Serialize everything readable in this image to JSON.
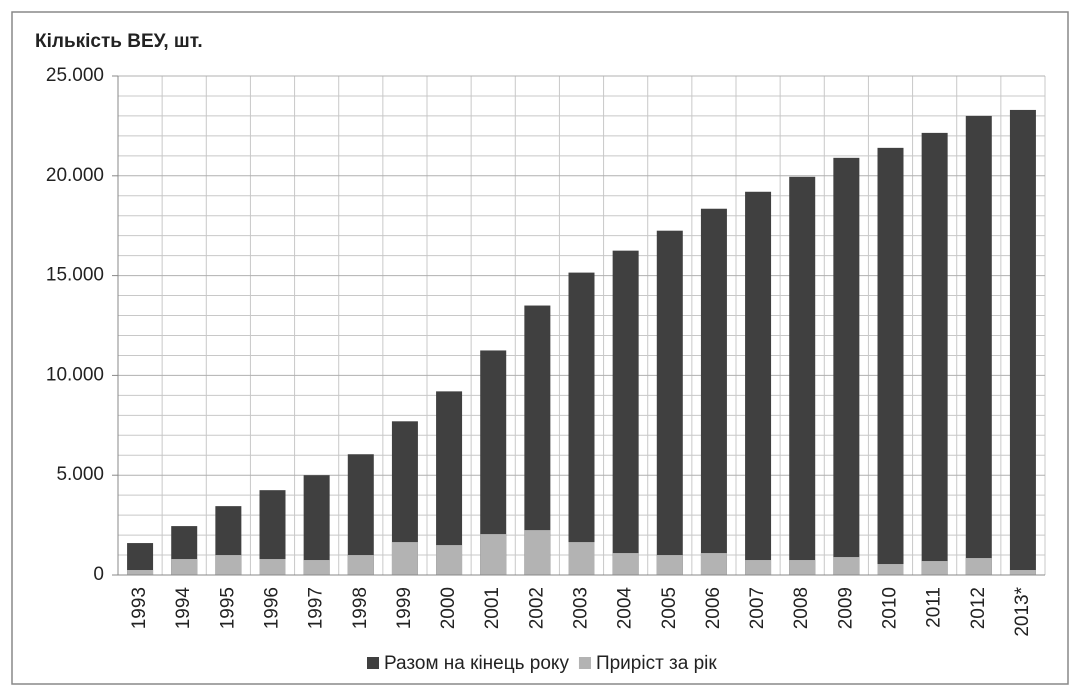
{
  "chart_data": {
    "type": "bar",
    "title": "Кількість ВЕУ, шт.",
    "categories": [
      "1993",
      "1994",
      "1995",
      "1996",
      "1997",
      "1998",
      "1999",
      "2000",
      "2001",
      "2002",
      "2003",
      "2004",
      "2005",
      "2006",
      "2007",
      "2008",
      "2009",
      "2010",
      "2011",
      "2012",
      "2013*"
    ],
    "series": [
      {
        "name": "Разом на кінець року",
        "color": "#404040",
        "values": [
          1600,
          2450,
          3450,
          4250,
          5000,
          6050,
          7700,
          9200,
          11250,
          13500,
          15150,
          16250,
          17250,
          18350,
          19200,
          19950,
          20900,
          21400,
          22150,
          23000,
          23300
        ]
      },
      {
        "name": "Приріст за рік",
        "color": "#b3b3b3",
        "values": [
          250,
          800,
          1000,
          800,
          750,
          1000,
          1650,
          1500,
          2050,
          2250,
          1650,
          1100,
          1000,
          1100,
          750,
          750,
          900,
          550,
          700,
          850,
          250
        ]
      }
    ],
    "ylim": [
      0,
      25000
    ],
    "yticks": [
      0,
      {
        "value": 5000,
        "label": "5.000"
      },
      {
        "value": 10000,
        "label": "10.000"
      },
      {
        "value": 15000,
        "label": "15.000"
      },
      {
        "value": 20000,
        "label": "20.000"
      },
      {
        "value": 25000,
        "label": "25.000"
      }
    ],
    "grid": true
  }
}
